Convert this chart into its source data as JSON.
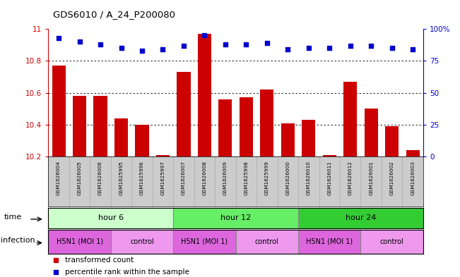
{
  "title": "GDS6010 / A_24_P200080",
  "samples": [
    "GSM1626004",
    "GSM1626005",
    "GSM1626006",
    "GSM1625995",
    "GSM1625996",
    "GSM1625997",
    "GSM1626007",
    "GSM1626008",
    "GSM1626009",
    "GSM1625998",
    "GSM1625999",
    "GSM1626000",
    "GSM1626010",
    "GSM1626011",
    "GSM1626012",
    "GSM1626001",
    "GSM1626002",
    "GSM1626003"
  ],
  "bar_values": [
    10.77,
    10.58,
    10.58,
    10.44,
    10.4,
    10.21,
    10.73,
    10.97,
    10.56,
    10.57,
    10.62,
    10.41,
    10.43,
    10.21,
    10.67,
    10.5,
    10.39,
    10.24
  ],
  "dot_values": [
    93,
    90,
    88,
    85,
    83,
    84,
    87,
    95,
    88,
    88,
    89,
    84,
    85,
    85,
    87,
    87,
    85,
    84
  ],
  "ylim_left": [
    10.2,
    11.0
  ],
  "ylim_right": [
    0,
    100
  ],
  "yticks_left": [
    10.2,
    10.4,
    10.6,
    10.8,
    11.0
  ],
  "ytick_left_labels": [
    "10.2",
    "10.4",
    "10.6",
    "10.8",
    "11"
  ],
  "yticks_right": [
    0,
    25,
    50,
    75,
    100
  ],
  "ytick_right_labels": [
    "0",
    "25",
    "50",
    "75",
    "100%"
  ],
  "bar_color": "#cc0000",
  "dot_color": "#0000cc",
  "bar_bottom": 10.2,
  "time_groups": [
    {
      "label": "hour 6",
      "start": 0,
      "end": 6,
      "color": "#ccffcc"
    },
    {
      "label": "hour 12",
      "start": 6,
      "end": 12,
      "color": "#66ee66"
    },
    {
      "label": "hour 24",
      "start": 12,
      "end": 18,
      "color": "#33cc33"
    }
  ],
  "infection_groups": [
    {
      "label": "H5N1 (MOI 1)",
      "start": 0,
      "end": 3,
      "color": "#dd66dd"
    },
    {
      "label": "control",
      "start": 3,
      "end": 6,
      "color": "#ee99ee"
    },
    {
      "label": "H5N1 (MOI 1)",
      "start": 6,
      "end": 9,
      "color": "#dd66dd"
    },
    {
      "label": "control",
      "start": 9,
      "end": 12,
      "color": "#ee99ee"
    },
    {
      "label": "H5N1 (MOI 1)",
      "start": 12,
      "end": 15,
      "color": "#dd66dd"
    },
    {
      "label": "control",
      "start": 15,
      "end": 18,
      "color": "#ee99ee"
    }
  ],
  "time_label": "time",
  "infection_label": "infection",
  "legend_bar_label": "transformed count",
  "legend_dot_label": "percentile rank within the sample",
  "background_color": "#ffffff",
  "right_axis_color": "#0000cc",
  "left_axis_color": "#cc0000",
  "sample_row_color": "#cccccc",
  "grid_ticks": [
    10.4,
    10.6,
    10.8
  ]
}
